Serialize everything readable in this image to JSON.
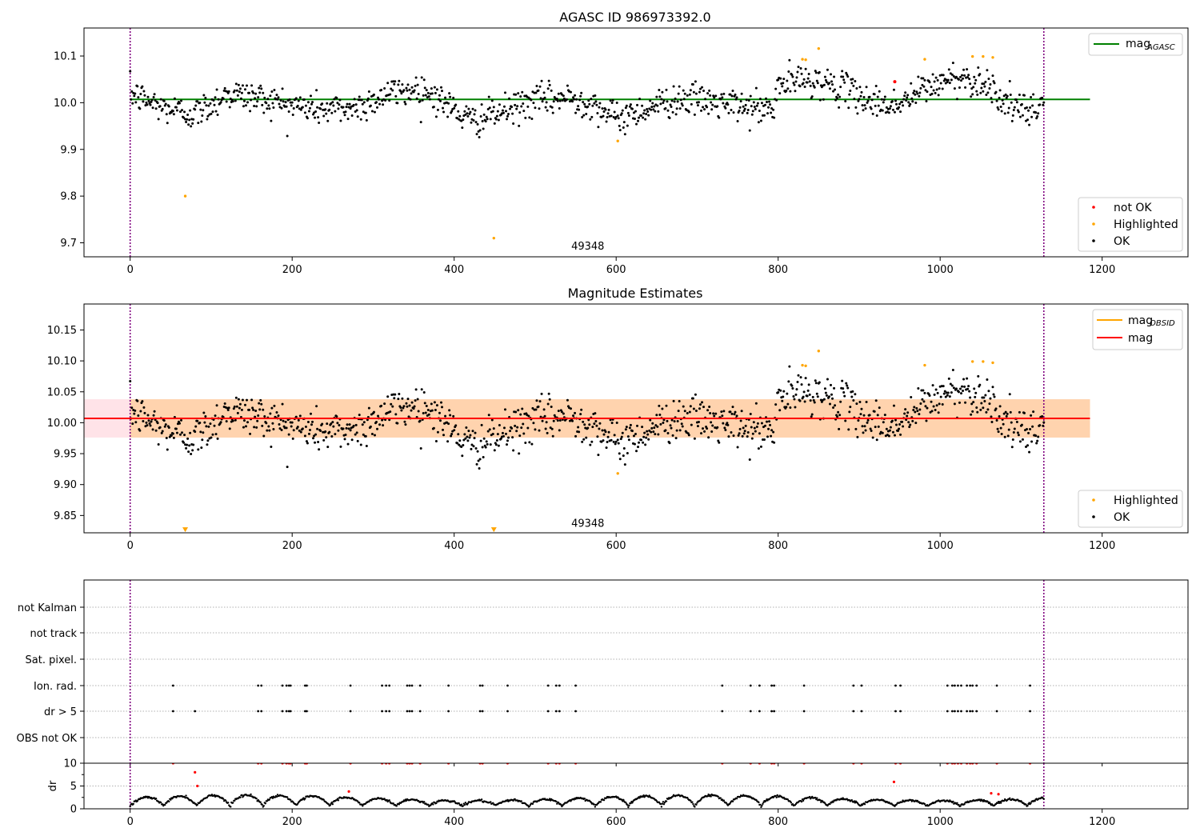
{
  "chart_data": [
    {
      "type": "scatter",
      "title": "AGASC ID 986973392.0",
      "xlim": [
        -57,
        1306
      ],
      "ylim": [
        9.67,
        10.16
      ],
      "xticks": [
        0,
        200,
        400,
        600,
        800,
        1000,
        1200
      ],
      "yticks": [
        9.7,
        9.8,
        9.9,
        10.0,
        10.1
      ],
      "ytick_labels": [
        "9.7",
        "9.8",
        "9.9",
        "10.0",
        "10.1"
      ],
      "vlines": [
        0,
        1128
      ],
      "hline": {
        "y": 10.007,
        "x0": 0,
        "x1": 1185,
        "color": "#008000"
      },
      "annotation": {
        "text": "49348",
        "x": 565,
        "y": 9.685
      },
      "series": [
        {
          "name": "not OK",
          "color": "#ff0000",
          "points": [
            [
              944,
              10.045
            ]
          ]
        },
        {
          "name": "Highlighted",
          "color": "#ffa500",
          "points": [
            [
              68,
              9.8
            ],
            [
              449,
              9.71
            ],
            [
              602,
              9.918
            ],
            [
              830,
              10.093
            ],
            [
              834,
              10.092
            ],
            [
              850,
              10.116
            ],
            [
              981,
              10.093
            ],
            [
              1040,
              10.099
            ],
            [
              1053,
              10.099
            ],
            [
              1065,
              10.097
            ]
          ]
        },
        {
          "name": "OK",
          "color": "#000000",
          "points": []
        }
      ],
      "legend_series": [
        {
          "label": "not OK",
          "color": "#ff0000"
        },
        {
          "label": "Highlighted",
          "color": "#ffa500"
        },
        {
          "label": "OK",
          "color": "#000000"
        }
      ],
      "legend_lines": [
        {
          "label": "mag",
          "sub": "AGASC",
          "color": "#008000"
        }
      ]
    },
    {
      "type": "scatter",
      "title": "Magnitude Estimates",
      "xlim": [
        -57,
        1306
      ],
      "ylim": [
        9.822,
        10.192
      ],
      "xticks": [
        0,
        200,
        400,
        600,
        800,
        1000,
        1200
      ],
      "yticks": [
        9.85,
        9.9,
        9.95,
        10.0,
        10.05,
        10.1,
        10.15
      ],
      "ytick_labels": [
        "9.85",
        "9.90",
        "9.95",
        "10.00",
        "10.05",
        "10.10",
        "10.15"
      ],
      "vlines": [
        0,
        1128
      ],
      "hline": {
        "y": 10.007,
        "x0": -57,
        "x1": 1185,
        "color": "#ff0000"
      },
      "band": {
        "y0": 9.976,
        "y1": 10.038,
        "x0": -57,
        "x1": 1185
      },
      "annotation": {
        "text": "49348",
        "x": 565,
        "y": 9.832
      },
      "clipped_markers": [
        [
          68,
          9.827
        ],
        [
          449,
          9.827
        ]
      ],
      "series": [
        {
          "name": "Highlighted",
          "color": "#ffa500",
          "points": [
            [
              602,
              9.918
            ],
            [
              830,
              10.093
            ],
            [
              834,
              10.092
            ],
            [
              850,
              10.116
            ],
            [
              981,
              10.093
            ],
            [
              1040,
              10.099
            ],
            [
              1053,
              10.099
            ],
            [
              1065,
              10.097
            ]
          ]
        },
        {
          "name": "OK",
          "color": "#000000",
          "points": []
        }
      ],
      "legend_series": [
        {
          "label": "Highlighted",
          "color": "#ffa500"
        },
        {
          "label": "OK",
          "color": "#000000"
        }
      ],
      "legend_lines": [
        {
          "label": "mag",
          "sub": "OBSID",
          "color": "#ffa500"
        },
        {
          "label": "mag",
          "sub": "",
          "color": "#ff0000"
        }
      ]
    },
    {
      "type": "scatter",
      "title": "",
      "xlim": [
        -57,
        1306
      ],
      "xticks": [
        0,
        200,
        400,
        600,
        800,
        1000,
        1200
      ],
      "vlines": [
        0,
        1128
      ],
      "flag_labels": [
        "not Kalman",
        "not track",
        "Sat. pixel.",
        "Ion. rad.",
        "dr > 5",
        "OBS not OK"
      ],
      "flag_points": {
        "Ion. rad.": [
          53,
          158,
          162,
          188,
          193,
          196,
          198,
          216,
          218,
          272,
          311,
          316,
          320,
          342,
          345,
          348,
          358,
          393,
          432,
          435,
          466,
          516,
          526,
          530,
          550,
          731,
          766,
          777,
          792,
          795,
          832,
          893,
          903,
          945,
          951,
          1009,
          1015,
          1018,
          1022,
          1026,
          1033,
          1037,
          1040,
          1045,
          1070,
          1111
        ],
        "dr > 5": [
          53,
          80,
          158,
          162,
          188,
          193,
          196,
          198,
          216,
          218,
          272,
          311,
          316,
          320,
          342,
          345,
          348,
          358,
          393,
          432,
          435,
          466,
          516,
          526,
          530,
          550,
          731,
          766,
          777,
          792,
          795,
          832,
          893,
          903,
          945,
          951,
          1009,
          1015,
          1018,
          1022,
          1026,
          1033,
          1037,
          1040,
          1045,
          1070,
          1111
        ]
      }
    },
    {
      "type": "scatter",
      "title": "",
      "ylabel": "dr",
      "xlim": [
        -57,
        1306
      ],
      "ylim": [
        0,
        10
      ],
      "xticks": [
        0,
        200,
        400,
        600,
        800,
        1000,
        1200
      ],
      "xtick_labels": [
        "0",
        "200",
        "400",
        "600",
        "800",
        "1000",
        "1200"
      ],
      "yticks": [
        0,
        5,
        10
      ],
      "ytick_labels": [
        "0",
        "5",
        "10"
      ],
      "vlines": [
        0,
        1128
      ],
      "series": [
        {
          "name": "dr",
          "color": "#000000",
          "points": []
        },
        {
          "name": "dr > 5",
          "color": "#ff0000",
          "points": [
            [
              53,
              10
            ],
            [
              80,
              8
            ],
            [
              83,
              5
            ],
            [
              158,
              10
            ],
            [
              162,
              10
            ],
            [
              188,
              10
            ],
            [
              193,
              10
            ],
            [
              196,
              10
            ],
            [
              198,
              10
            ],
            [
              216,
              10
            ],
            [
              218,
              10
            ],
            [
              270,
              3.8
            ],
            [
              272,
              10
            ],
            [
              311,
              10
            ],
            [
              316,
              10
            ],
            [
              320,
              10
            ],
            [
              342,
              10
            ],
            [
              345,
              10
            ],
            [
              348,
              10
            ],
            [
              358,
              10
            ],
            [
              393,
              10
            ],
            [
              432,
              10
            ],
            [
              435,
              10
            ],
            [
              466,
              10
            ],
            [
              516,
              10
            ],
            [
              526,
              10
            ],
            [
              530,
              10
            ],
            [
              550,
              10
            ],
            [
              731,
              10
            ],
            [
              766,
              10
            ],
            [
              777,
              10
            ],
            [
              792,
              10
            ],
            [
              795,
              10
            ],
            [
              832,
              10
            ],
            [
              893,
              10
            ],
            [
              903,
              10
            ],
            [
              943,
              5.9
            ],
            [
              945,
              10
            ],
            [
              951,
              10
            ],
            [
              1009,
              10
            ],
            [
              1015,
              10
            ],
            [
              1018,
              10
            ],
            [
              1022,
              10
            ],
            [
              1026,
              10
            ],
            [
              1033,
              10
            ],
            [
              1037,
              10
            ],
            [
              1040,
              10
            ],
            [
              1045,
              10
            ],
            [
              1063,
              3.4
            ],
            [
              1070,
              10
            ],
            [
              1072,
              3.2
            ],
            [
              1111,
              10
            ]
          ]
        }
      ]
    }
  ]
}
